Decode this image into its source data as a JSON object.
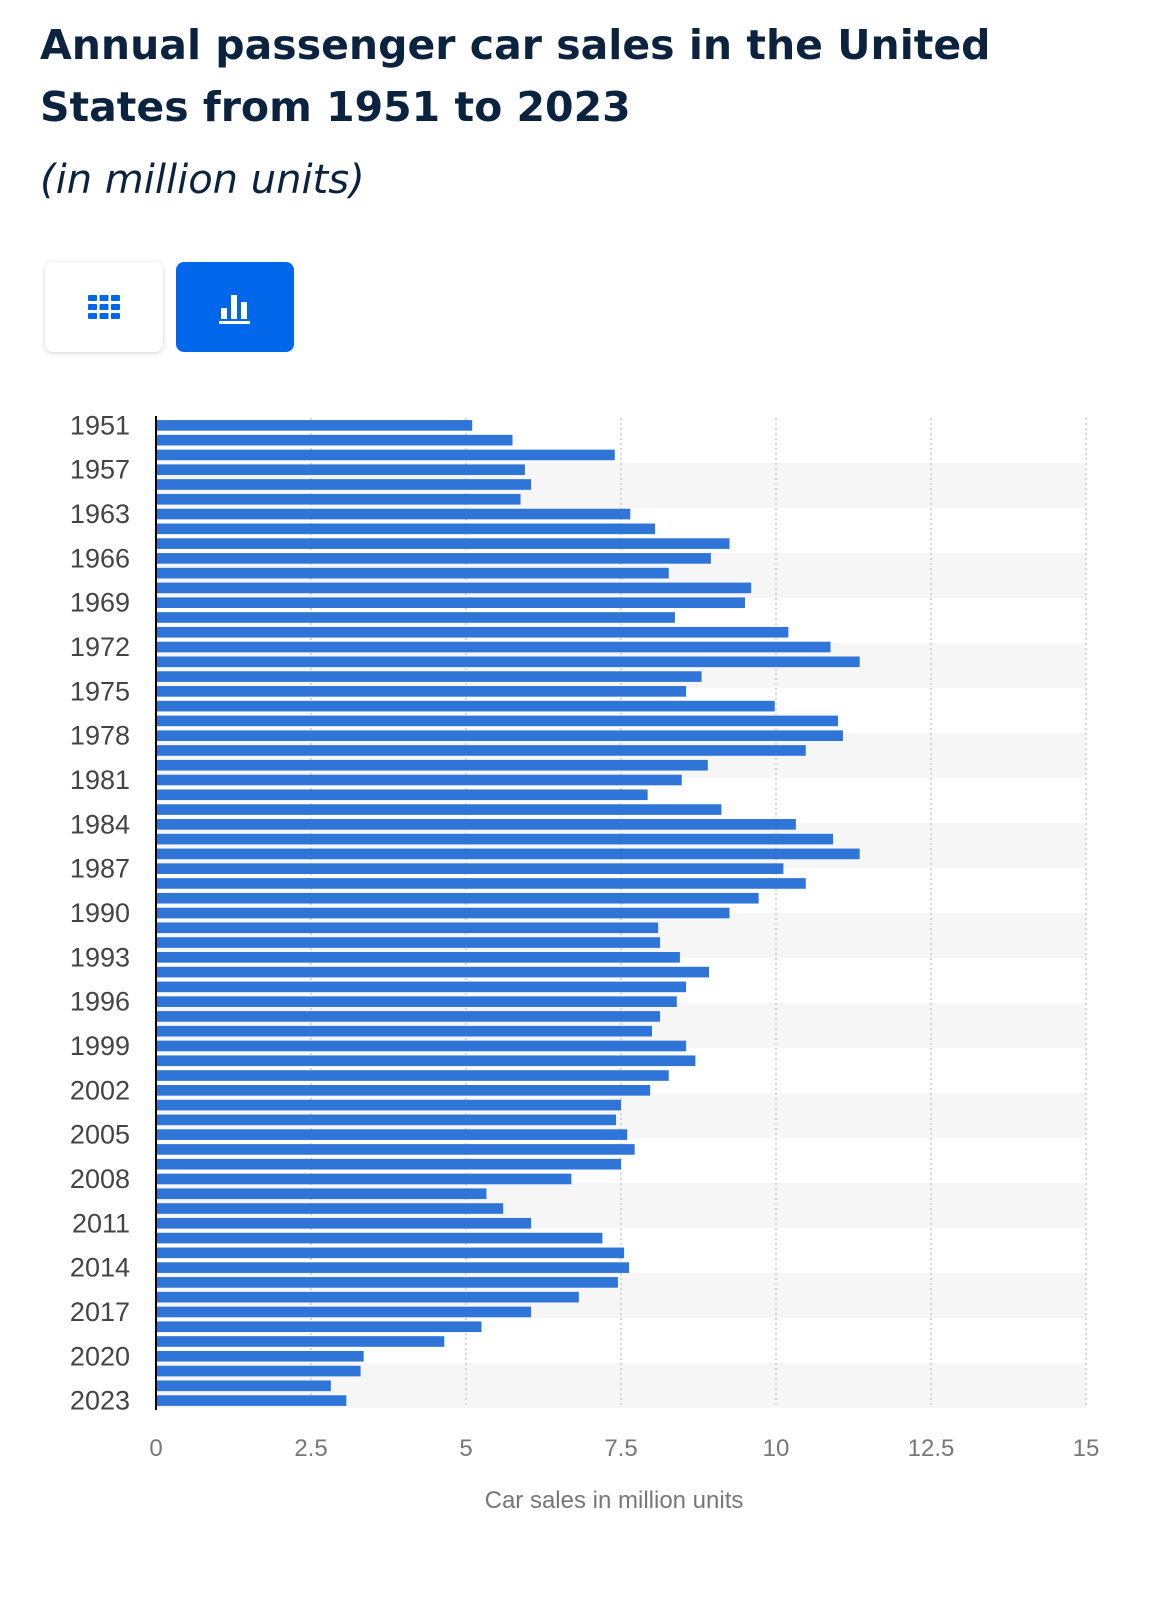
{
  "title": "Annual passenger car sales in the United States from 1951 to 2023",
  "subtitle": "(in million units)",
  "view_toggle": [
    {
      "name": "table-view",
      "icon": "table-grid-icon",
      "active": false
    },
    {
      "name": "chart-view",
      "icon": "bar-chart-icon",
      "active": true
    }
  ],
  "colors": {
    "bar": "#2f75d8",
    "accent": "#0066ea",
    "axis": "#000000",
    "grid": "#c8c8c8"
  },
  "chart_data": {
    "type": "bar",
    "orientation": "horizontal",
    "title": "Annual passenger car sales in the United States from 1951 to 2023",
    "subtitle": "(in million units)",
    "xlabel": "Car sales in million units",
    "ylabel": "",
    "xlim": [
      0,
      15
    ],
    "xticks": [
      "0",
      "2.5",
      "5",
      "7.5",
      "10",
      "12.5",
      "15"
    ],
    "grid": true,
    "ytick_labels": [
      "1951",
      "1957",
      "1963",
      "1966",
      "1969",
      "1972",
      "1975",
      "1978",
      "1981",
      "1984",
      "1987",
      "1990",
      "1993",
      "1996",
      "1999",
      "2002",
      "2005",
      "2008",
      "2011",
      "2014",
      "2017",
      "2020",
      "2023"
    ],
    "categories": [
      "1951",
      "1954",
      "1955",
      "1957",
      "1960",
      "1962",
      "1963",
      "1964",
      "1965",
      "1966",
      "1967",
      "1968",
      "1969",
      "1970",
      "1971",
      "1972",
      "1973",
      "1974",
      "1975",
      "1976",
      "1977",
      "1978",
      "1979",
      "1980",
      "1981",
      "1982",
      "1983",
      "1984",
      "1985",
      "1986",
      "1987",
      "1988",
      "1989",
      "1990",
      "1991",
      "1992",
      "1993",
      "1994",
      "1995",
      "1996",
      "1997",
      "1998",
      "1999",
      "2000",
      "2001",
      "2002",
      "2003",
      "2004",
      "2005",
      "2006",
      "2007",
      "2008",
      "2009",
      "2010",
      "2011",
      "2012",
      "2013",
      "2014",
      "2015",
      "2016",
      "2017",
      "2018",
      "2019",
      "2020",
      "2021",
      "2022",
      "2023"
    ],
    "values": [
      5.1,
      5.75,
      7.4,
      5.95,
      6.05,
      5.88,
      7.65,
      8.05,
      9.25,
      8.95,
      8.27,
      9.6,
      9.5,
      8.37,
      10.2,
      10.88,
      11.35,
      8.8,
      8.55,
      9.98,
      11.0,
      11.08,
      10.48,
      8.9,
      8.48,
      7.93,
      9.12,
      10.32,
      10.92,
      11.35,
      10.12,
      10.48,
      9.72,
      9.25,
      8.1,
      8.13,
      8.45,
      8.92,
      8.55,
      8.4,
      8.13,
      8.0,
      8.55,
      8.7,
      8.27,
      7.97,
      7.5,
      7.42,
      7.6,
      7.72,
      7.5,
      6.7,
      5.33,
      5.6,
      6.05,
      7.2,
      7.55,
      7.63,
      7.45,
      6.82,
      6.05,
      5.25,
      4.65,
      3.35,
      3.3,
      2.82,
      3.07
    ]
  }
}
